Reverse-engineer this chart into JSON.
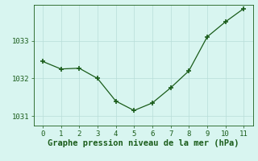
{
  "x": [
    0,
    1,
    2,
    3,
    4,
    5,
    6,
    7,
    8,
    9,
    10,
    11
  ],
  "y": [
    1032.45,
    1032.25,
    1032.27,
    1032.0,
    1031.4,
    1031.15,
    1031.35,
    1031.75,
    1032.2,
    1033.1,
    1033.5,
    1033.85
  ],
  "line_color": "#1a5c1a",
  "marker_color": "#1a5c1a",
  "bg_color": "#d8f5f0",
  "grid_color": "#b8ddd8",
  "xlabel": "Graphe pression niveau de la mer (hPa)",
  "xlabel_color": "#1a5c1a",
  "tick_color": "#1a5c1a",
  "ylim": [
    1030.75,
    1033.95
  ],
  "xlim": [
    -0.5,
    11.5
  ],
  "yticks": [
    1031,
    1032,
    1033
  ],
  "xticks": [
    0,
    1,
    2,
    3,
    4,
    5,
    6,
    7,
    8,
    9,
    10,
    11
  ],
  "tick_fontsize": 6.5,
  "xlabel_fontsize": 7.5
}
